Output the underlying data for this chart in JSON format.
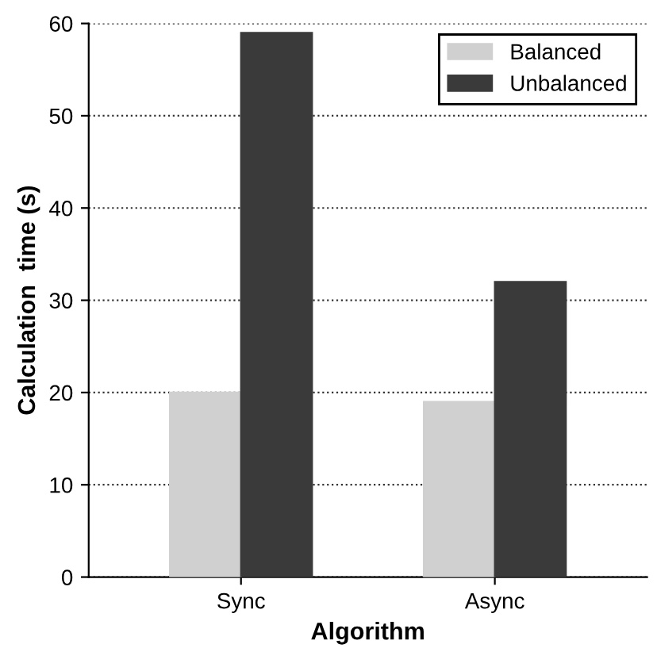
{
  "chart_data": {
    "type": "bar",
    "xlabel": "Algorithm",
    "ylabel": "Calculation  time (s)",
    "categories": [
      "Sync",
      "Async"
    ],
    "series": [
      {
        "name": "Balanced",
        "color": "#d0d0d0",
        "values": [
          20,
          19
        ]
      },
      {
        "name": "Unbalanced",
        "color": "#3a3a3a",
        "values": [
          59,
          32
        ]
      }
    ],
    "ylim": [
      0,
      60
    ],
    "yticks": [
      0,
      10,
      20,
      30,
      40,
      50,
      60
    ],
    "grid": "y",
    "legend": "top right"
  }
}
